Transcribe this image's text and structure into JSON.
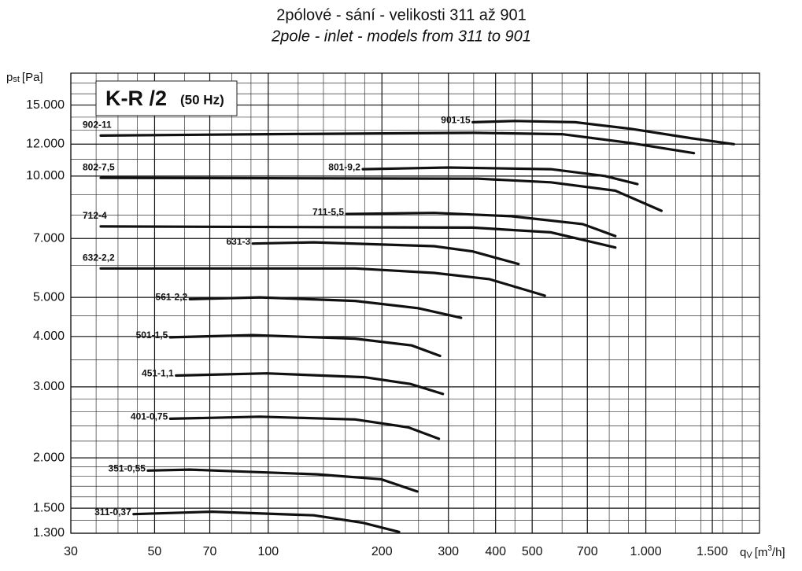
{
  "chart_data": {
    "type": "line",
    "title": "2pólové - sání - velikosti 311 až 901",
    "subtitle": "2pole - inlet - models from 311 to 901",
    "badge": {
      "model": "K-R /2",
      "freq": "(50 Hz)"
    },
    "y_label": {
      "symbol": "p",
      "sub": "st",
      "unit": "[Pa]"
    },
    "x_label": {
      "symbol": "q",
      "sub": "V",
      "unit": "[m",
      "sup": "3",
      "unit_end": "/h]"
    },
    "xlog": true,
    "ylog": true,
    "grid": true,
    "color": "#111111",
    "xlim": [
      30,
      2000
    ],
    "ylim": [
      1300,
      18000
    ],
    "xticks": [
      30,
      50,
      70,
      100,
      200,
      300,
      400,
      500,
      700,
      {
        "value": 1000,
        "label": "1.000"
      },
      {
        "value": 1500,
        "label": "1.500"
      }
    ],
    "yticks": [
      {
        "value": 1300,
        "label": "1.300"
      },
      {
        "value": 1500,
        "label": "1.500"
      },
      {
        "value": 2000,
        "label": "2.000"
      },
      {
        "value": 3000,
        "label": "3.000"
      },
      {
        "value": 4000,
        "label": "4.000"
      },
      {
        "value": 5000,
        "label": "5.000"
      },
      {
        "value": 7000,
        "label": "7.000"
      },
      {
        "value": 10000,
        "label": "10.000"
      },
      {
        "value": 12000,
        "label": "12.000"
      },
      {
        "value": 15000,
        "label": "15.000"
      }
    ],
    "xminor": [
      35,
      40,
      45,
      60,
      80,
      90,
      120,
      140,
      160,
      180,
      250,
      350,
      450,
      600,
      800,
      900,
      1200,
      1400,
      1600,
      1800,
      2000
    ],
    "yminor": [
      1400,
      1600,
      1700,
      1800,
      1900,
      2200,
      2400,
      2600,
      2800,
      3500,
      4500,
      6000,
      8000,
      9000,
      11000,
      13000,
      14000,
      16000,
      17000,
      18000
    ],
    "series": [
      {
        "name": "902-11",
        "x": [
          36,
          100,
          350,
          600,
          900,
          1340
        ],
        "values": [
          12600,
          12700,
          12800,
          12700,
          12100,
          11400
        ]
      },
      {
        "name": "901-15",
        "x": [
          348,
          450,
          650,
          910,
          1330,
          1710
        ],
        "values": [
          13600,
          13700,
          13600,
          13100,
          12400,
          12000
        ]
      },
      {
        "name": "802-7,5",
        "x": [
          36,
          360,
          560,
          830,
          1100
        ],
        "values": [
          9900,
          9850,
          9650,
          9200,
          8200
        ]
      },
      {
        "name": "801-9,2",
        "x": [
          178,
          300,
          560,
          780,
          950
        ],
        "values": [
          10400,
          10500,
          10400,
          10000,
          9550
        ]
      },
      {
        "name": "712-4",
        "x": [
          36,
          348,
          560,
          830
        ],
        "values": [
          7500,
          7450,
          7250,
          6650
        ]
      },
      {
        "name": "711-5,5",
        "x": [
          161,
          275,
          440,
          680,
          830
        ],
        "values": [
          8050,
          8100,
          7950,
          7600,
          7100
        ]
      },
      {
        "name": "631-3",
        "x": [
          91,
          132,
          275,
          348,
          460
        ],
        "values": [
          6800,
          6850,
          6700,
          6500,
          6050
        ]
      },
      {
        "name": "632-2,2",
        "x": [
          36,
          170,
          275,
          385,
          540
        ],
        "values": [
          5900,
          5900,
          5750,
          5550,
          5050
        ]
      },
      {
        "name": "561-2,2",
        "x": [
          62,
          95,
          170,
          250,
          324
        ],
        "values": [
          4950,
          5000,
          4900,
          4700,
          4450
        ]
      },
      {
        "name": "501-1,5",
        "x": [
          55,
          91,
          170,
          240,
          285
        ],
        "values": [
          3980,
          4030,
          3950,
          3800,
          3580
        ]
      },
      {
        "name": "451-1,1",
        "x": [
          57,
          99,
          180,
          238,
          290
        ],
        "values": [
          3200,
          3240,
          3170,
          3050,
          2880
        ]
      },
      {
        "name": "401-0,75",
        "x": [
          55,
          95,
          170,
          235,
          283
        ],
        "values": [
          2500,
          2530,
          2490,
          2380,
          2230
        ]
      },
      {
        "name": "351-0,55",
        "x": [
          48,
          62,
          135,
          199,
          248
        ],
        "values": [
          1860,
          1870,
          1820,
          1770,
          1650
        ]
      },
      {
        "name": "311-0,37",
        "x": [
          44,
          71,
          132,
          178,
          222
        ],
        "values": [
          1450,
          1470,
          1440,
          1380,
          1310
        ]
      }
    ]
  }
}
